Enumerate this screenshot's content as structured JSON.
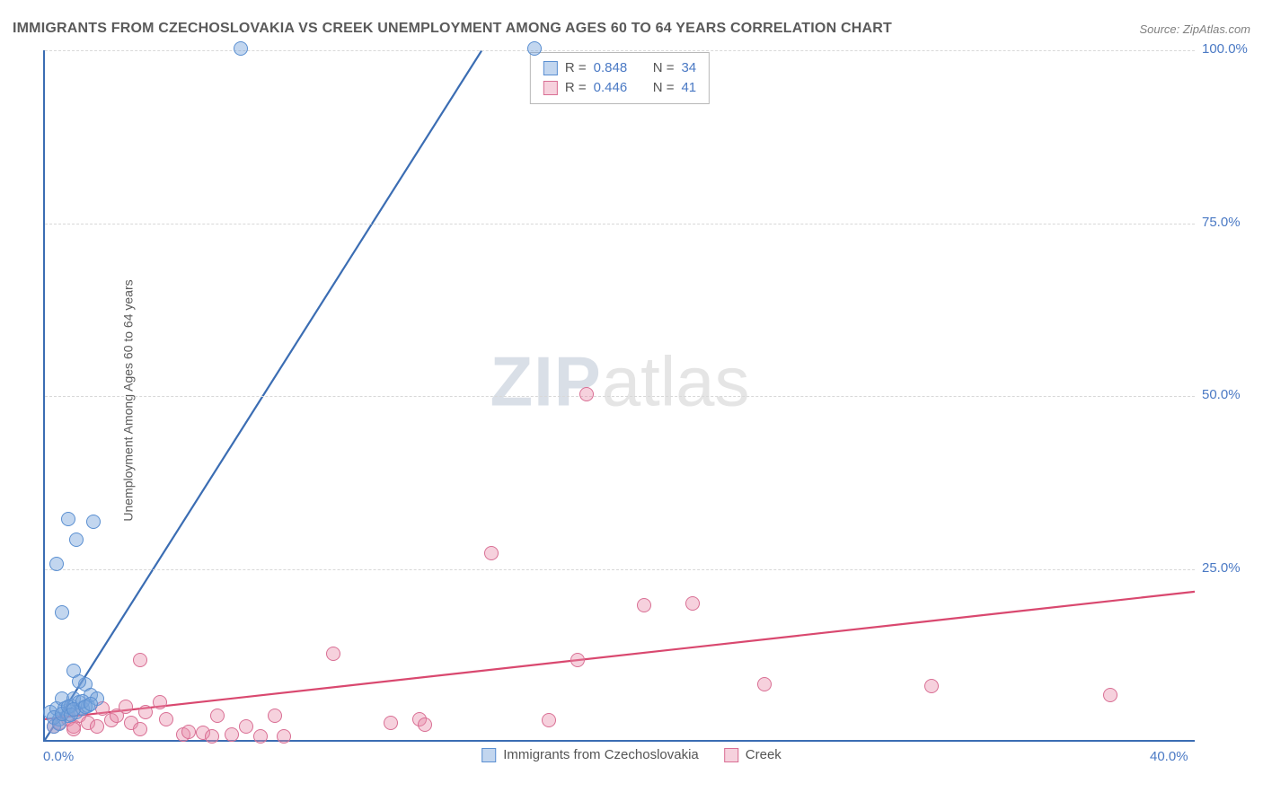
{
  "title": "IMMIGRANTS FROM CZECHOSLOVAKIA VS CREEK UNEMPLOYMENT AMONG AGES 60 TO 64 YEARS CORRELATION CHART",
  "source_label": "Source: ZipAtlas.com",
  "y_axis_label": "Unemployment Among Ages 60 to 64 years",
  "watermark_a": "ZIP",
  "watermark_b": "atlas",
  "chart": {
    "type": "scatter",
    "background_color": "#ffffff",
    "axis_color": "#3b6db3",
    "grid_color": "#d8d8d8",
    "xlim": [
      0,
      40
    ],
    "ylim": [
      0,
      100
    ],
    "x_ticks": [
      {
        "v": 0,
        "label": "0.0%"
      },
      {
        "v": 40,
        "label": "40.0%"
      }
    ],
    "y_ticks": [
      {
        "v": 25,
        "label": "25.0%"
      },
      {
        "v": 50,
        "label": "50.0%"
      },
      {
        "v": 75,
        "label": "75.0%"
      },
      {
        "v": 100,
        "label": "100.0%"
      }
    ],
    "series": [
      {
        "name": "Immigrants from Czechoslovakia",
        "fill": "rgba(119,163,219,0.45)",
        "stroke": "#5a8fd1",
        "marker_radius": 8,
        "line_color": "#3b6db3",
        "line_width": 2.2,
        "trend": {
          "x1": 0,
          "y1": 0,
          "x2": 15.2,
          "y2": 100
        },
        "R_label": "R =",
        "R_value": "0.848",
        "N_label": "N =",
        "N_value": "34",
        "points": [
          {
            "x": 0.2,
            "y": 4.0
          },
          {
            "x": 0.3,
            "y": 2.0
          },
          {
            "x": 0.4,
            "y": 4.5
          },
          {
            "x": 0.5,
            "y": 3.0
          },
          {
            "x": 0.6,
            "y": 6.0
          },
          {
            "x": 0.7,
            "y": 4.5
          },
          {
            "x": 0.8,
            "y": 3.5
          },
          {
            "x": 0.9,
            "y": 5.0
          },
          {
            "x": 1.0,
            "y": 6.0
          },
          {
            "x": 1.1,
            "y": 4.0
          },
          {
            "x": 1.2,
            "y": 5.5
          },
          {
            "x": 1.3,
            "y": 4.5
          },
          {
            "x": 1.4,
            "y": 8.0
          },
          {
            "x": 1.5,
            "y": 5.0
          },
          {
            "x": 1.6,
            "y": 6.5
          },
          {
            "x": 1.0,
            "y": 10.0
          },
          {
            "x": 1.2,
            "y": 8.5
          },
          {
            "x": 1.8,
            "y": 6.0
          },
          {
            "x": 0.6,
            "y": 18.5
          },
          {
            "x": 0.4,
            "y": 25.5
          },
          {
            "x": 1.1,
            "y": 29.0
          },
          {
            "x": 1.7,
            "y": 31.5
          },
          {
            "x": 0.8,
            "y": 32.0
          },
          {
            "x": 6.8,
            "y": 100.0
          },
          {
            "x": 17.0,
            "y": 100.0
          },
          {
            "x": 0.3,
            "y": 3.2
          },
          {
            "x": 0.5,
            "y": 2.4
          },
          {
            "x": 0.6,
            "y": 3.8
          },
          {
            "x": 0.8,
            "y": 4.8
          },
          {
            "x": 0.9,
            "y": 3.6
          },
          {
            "x": 1.0,
            "y": 4.4
          },
          {
            "x": 1.3,
            "y": 5.6
          },
          {
            "x": 1.4,
            "y": 4.8
          },
          {
            "x": 1.6,
            "y": 5.2
          }
        ]
      },
      {
        "name": "Creek",
        "fill": "rgba(233,140,170,0.40)",
        "stroke": "#d96f94",
        "marker_radius": 8,
        "line_color": "#d9486f",
        "line_width": 2.2,
        "trend": {
          "x1": 0,
          "y1": 3.0,
          "x2": 40,
          "y2": 21.5
        },
        "R_label": "R =",
        "R_value": "0.446",
        "N_label": "N =",
        "N_value": "41",
        "points": [
          {
            "x": 0.3,
            "y": 2.0
          },
          {
            "x": 0.5,
            "y": 2.5
          },
          {
            "x": 0.8,
            "y": 3.0
          },
          {
            "x": 1.0,
            "y": 2.0
          },
          {
            "x": 1.2,
            "y": 3.5
          },
          {
            "x": 1.5,
            "y": 2.5
          },
          {
            "x": 1.8,
            "y": 2.0
          },
          {
            "x": 2.0,
            "y": 4.5
          },
          {
            "x": 2.3,
            "y": 2.8
          },
          {
            "x": 2.5,
            "y": 3.5
          },
          {
            "x": 3.0,
            "y": 2.5
          },
          {
            "x": 3.3,
            "y": 1.5
          },
          {
            "x": 3.5,
            "y": 4.0
          },
          {
            "x": 3.3,
            "y": 11.5
          },
          {
            "x": 4.2,
            "y": 3.0
          },
          {
            "x": 4.8,
            "y": 0.8
          },
          {
            "x": 5.0,
            "y": 1.2
          },
          {
            "x": 5.5,
            "y": 1.0
          },
          {
            "x": 5.8,
            "y": 0.5
          },
          {
            "x": 6.0,
            "y": 3.5
          },
          {
            "x": 6.5,
            "y": 0.8
          },
          {
            "x": 7.0,
            "y": 2.0
          },
          {
            "x": 7.5,
            "y": 0.5
          },
          {
            "x": 8.0,
            "y": 3.5
          },
          {
            "x": 8.3,
            "y": 0.5
          },
          {
            "x": 10.0,
            "y": 12.5
          },
          {
            "x": 12.0,
            "y": 2.5
          },
          {
            "x": 13.0,
            "y": 3.0
          },
          {
            "x": 13.2,
            "y": 2.2
          },
          {
            "x": 15.5,
            "y": 27.0
          },
          {
            "x": 17.5,
            "y": 2.8
          },
          {
            "x": 18.5,
            "y": 11.5
          },
          {
            "x": 18.8,
            "y": 50.0
          },
          {
            "x": 20.8,
            "y": 19.5
          },
          {
            "x": 22.5,
            "y": 19.8
          },
          {
            "x": 25.0,
            "y": 8.0
          },
          {
            "x": 30.8,
            "y": 7.8
          },
          {
            "x": 37.0,
            "y": 6.5
          },
          {
            "x": 1.0,
            "y": 1.5
          },
          {
            "x": 2.8,
            "y": 4.8
          },
          {
            "x": 4.0,
            "y": 5.5
          }
        ]
      }
    ]
  },
  "legend_bottom": [
    {
      "label": "Immigrants from Czechoslovakia",
      "fill": "rgba(119,163,219,0.45)",
      "stroke": "#5a8fd1"
    },
    {
      "label": "Creek",
      "fill": "rgba(233,140,170,0.40)",
      "stroke": "#d96f94"
    }
  ]
}
